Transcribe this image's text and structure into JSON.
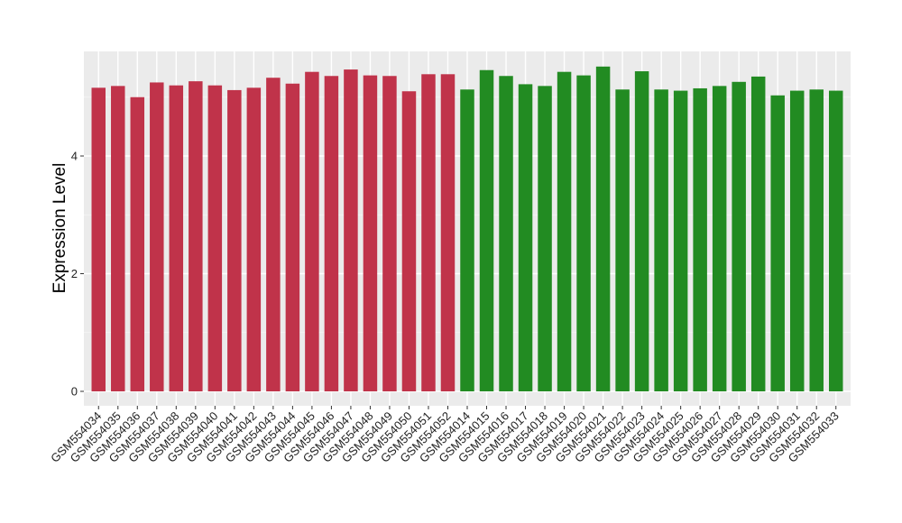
{
  "chart_data": {
    "type": "bar",
    "ylabel": "Expression Level",
    "xlabel": "",
    "title": "",
    "ylim": [
      0,
      5.75
    ],
    "yticks": [
      0,
      2,
      4
    ],
    "grid": true,
    "legend": "none",
    "colors": {
      "group1": "#c0334a",
      "group2": "#228b22",
      "panel": "#ebebeb",
      "grid": "#ffffff"
    },
    "categories": [
      "GSM554034",
      "GSM554035",
      "GSM554036",
      "GSM554037",
      "GSM554038",
      "GSM554039",
      "GSM554040",
      "GSM554041",
      "GSM554042",
      "GSM554043",
      "GSM554044",
      "GSM554045",
      "GSM554046",
      "GSM554047",
      "GSM554048",
      "GSM554049",
      "GSM554050",
      "GSM554051",
      "GSM554052",
      "GSM554014",
      "GSM554015",
      "GSM554016",
      "GSM554017",
      "GSM554018",
      "GSM554019",
      "GSM554020",
      "GSM554021",
      "GSM554022",
      "GSM554023",
      "GSM554024",
      "GSM554025",
      "GSM554026",
      "GSM554027",
      "GSM554028",
      "GSM554029",
      "GSM554030",
      "GSM554031",
      "GSM554032",
      "GSM554033"
    ],
    "values": [
      5.16,
      5.19,
      5.0,
      5.25,
      5.2,
      5.27,
      5.2,
      5.12,
      5.16,
      5.33,
      5.23,
      5.43,
      5.36,
      5.47,
      5.37,
      5.36,
      5.1,
      5.39,
      5.39,
      5.13,
      5.46,
      5.36,
      5.22,
      5.19,
      5.43,
      5.37,
      5.52,
      5.13,
      5.44,
      5.13,
      5.11,
      5.15,
      5.19,
      5.26,
      5.35,
      5.03,
      5.11,
      5.13,
      5.11
    ],
    "groups": [
      "group1",
      "group1",
      "group1",
      "group1",
      "group1",
      "group1",
      "group1",
      "group1",
      "group1",
      "group1",
      "group1",
      "group1",
      "group1",
      "group1",
      "group1",
      "group1",
      "group1",
      "group1",
      "group1",
      "group2",
      "group2",
      "group2",
      "group2",
      "group2",
      "group2",
      "group2",
      "group2",
      "group2",
      "group2",
      "group2",
      "group2",
      "group2",
      "group2",
      "group2",
      "group2",
      "group2",
      "group2",
      "group2",
      "group2"
    ]
  }
}
